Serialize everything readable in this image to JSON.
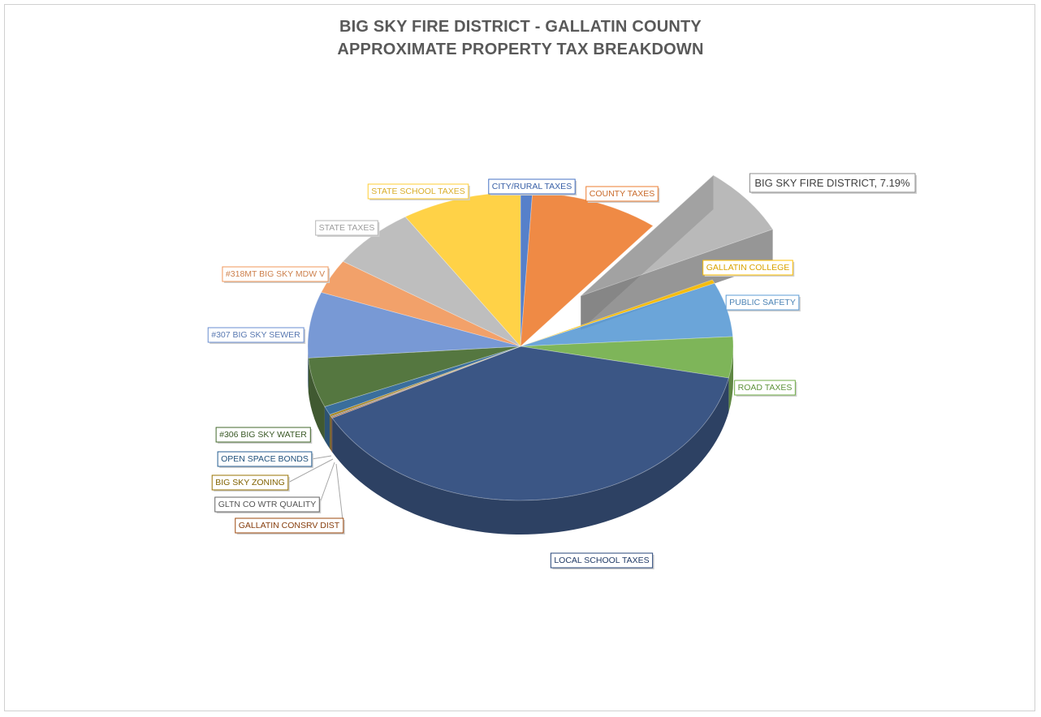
{
  "chart_data": {
    "type": "pie",
    "title": "BIG SKY FIRE DISTRICT - GALLATIN COUNTY",
    "subtitle": "APPROXIMATE PROPERTY TAX BREAKDOWN",
    "style": "3d-exploded",
    "slices": [
      {
        "label": "CITY/RURAL TAXES",
        "value": 0.9,
        "color": "#4472c4"
      },
      {
        "label": "COUNTY TAXES",
        "value": 9.8,
        "color": "#ed7d31"
      },
      {
        "label": "BIG SKY FIRE DISTRICT",
        "value": 7.19,
        "color": "#a5a5a5",
        "exploded": true,
        "data_label": "BIG SKY FIRE DISTRICT, 7.19%"
      },
      {
        "label": "GALLATIN COLLEGE",
        "value": 0.4,
        "color": "#ffc000"
      },
      {
        "label": "PUBLIC SAFETY",
        "value": 5.7,
        "color": "#5b9bd5"
      },
      {
        "label": "ROAD TAXES",
        "value": 4.3,
        "color": "#70ad47"
      },
      {
        "label": "LOCAL SCHOOL TAXES",
        "value": 39.0,
        "color": "#264478"
      },
      {
        "label": "GALLATIN CONSRV DIST",
        "value": 0.1,
        "color": "#9e480e"
      },
      {
        "label": "GLTN CO WTR QUALITY",
        "value": 0.1,
        "color": "#636363"
      },
      {
        "label": "BIG SKY ZONING",
        "value": 0.2,
        "color": "#997300"
      },
      {
        "label": "OPEN SPACE BONDS",
        "value": 0.9,
        "color": "#255e91"
      },
      {
        "label": "#306 BIG SKY WATER",
        "value": 5.2,
        "color": "#43682b"
      },
      {
        "label": "#307 BIG SKY SEWER",
        "value": 6.9,
        "color": "#698ed0"
      },
      {
        "label": "#318MT BIG SKY MDW V",
        "value": 3.6,
        "color": "#f1975a"
      },
      {
        "label": "STATE  TAXES",
        "value": 6.6,
        "color": "#b7b7b7"
      },
      {
        "label": "STATE  SCHOOL TAXES",
        "value": 9.1,
        "color": "#ffcd33"
      }
    ],
    "legend": "none"
  }
}
